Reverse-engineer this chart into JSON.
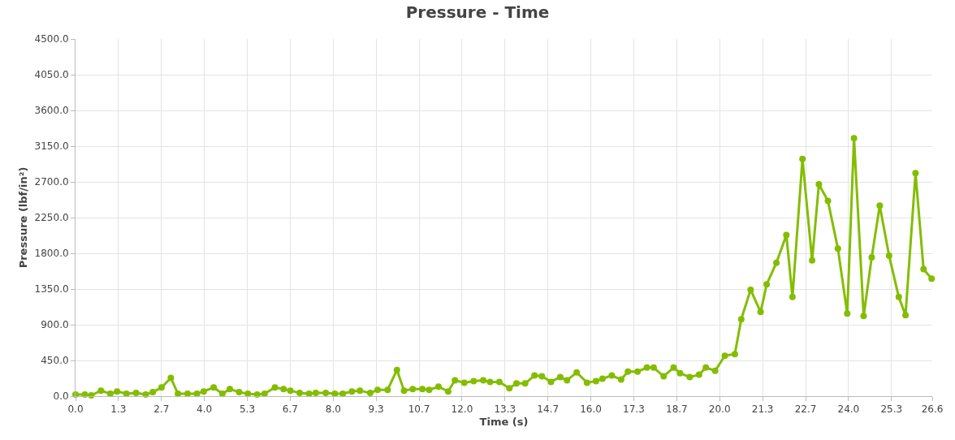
{
  "chart_data": {
    "type": "line",
    "title": "Pressure - Time",
    "xlabel": "Time (s)",
    "ylabel": "Pressure (lbf/in²)",
    "x": [
      0.0,
      0.29,
      0.49,
      0.79,
      1.08,
      1.29,
      1.58,
      1.88,
      2.18,
      2.4,
      2.67,
      2.96,
      3.18,
      3.48,
      3.77,
      3.98,
      4.29,
      4.56,
      4.79,
      5.08,
      5.35,
      5.64,
      5.87,
      6.19,
      6.46,
      6.67,
      6.96,
      7.25,
      7.46,
      7.77,
      8.05,
      8.3,
      8.58,
      8.83,
      9.15,
      9.38,
      9.69,
      9.98,
      10.2,
      10.47,
      10.77,
      10.98,
      11.27,
      11.57,
      11.78,
      12.07,
      12.36,
      12.66,
      12.87,
      13.16,
      13.47,
      13.69,
      13.96,
      14.25,
      14.48,
      14.76,
      15.05,
      15.26,
      15.56,
      15.88,
      16.16,
      16.36,
      16.65,
      16.94,
      17.15,
      17.45,
      17.74,
      17.95,
      18.26,
      18.57,
      18.77,
      19.07,
      19.36,
      19.57,
      19.86,
      20.16,
      20.47,
      20.67,
      20.96,
      21.27,
      21.46,
      21.76,
      22.07,
      22.26,
      22.57,
      22.87,
      23.08,
      23.36,
      23.67,
      23.96,
      24.17,
      24.47,
      24.72,
      24.97,
      25.26,
      25.56,
      25.77,
      26.08,
      26.33,
      26.58
    ],
    "series": [
      {
        "color": "#84bd00",
        "values": [
          20,
          20,
          10,
          70,
          30,
          60,
          30,
          40,
          20,
          50,
          110,
          230,
          30,
          30,
          30,
          60,
          110,
          30,
          90,
          50,
          30,
          20,
          30,
          110,
          90,
          70,
          40,
          30,
          40,
          40,
          30,
          30,
          60,
          70,
          40,
          80,
          80,
          330,
          70,
          90,
          90,
          80,
          120,
          60,
          200,
          170,
          190,
          200,
          180,
          180,
          100,
          160,
          160,
          260,
          250,
          180,
          240,
          200,
          300,
          170,
          190,
          220,
          260,
          210,
          310,
          310,
          360,
          360,
          250,
          360,
          290,
          240,
          270,
          360,
          320,
          510,
          530,
          970,
          1340,
          1060,
          1410,
          1680,
          2030,
          1250,
          2990,
          1710,
          2670,
          2460,
          1860,
          1040,
          3250,
          1010,
          1750,
          2400,
          1770,
          1250,
          1020,
          2810,
          1600,
          1480
        ]
      }
    ],
    "xlim": [
      0,
      26.6
    ],
    "xticks": [
      {
        "value": 0,
        "label": "0.0"
      },
      {
        "value": 1.333,
        "label": "1.3"
      },
      {
        "value": 2.667,
        "label": "2.7"
      },
      {
        "value": 4,
        "label": "4.0"
      },
      {
        "value": 5.333,
        "label": "5.3"
      },
      {
        "value": 6.667,
        "label": "6.7"
      },
      {
        "value": 8,
        "label": "8.0"
      },
      {
        "value": 9.333,
        "label": "9.3"
      },
      {
        "value": 10.667,
        "label": "10.7"
      },
      {
        "value": 12,
        "label": "12.0"
      },
      {
        "value": 13.333,
        "label": "13.3"
      },
      {
        "value": 14.667,
        "label": "14.7"
      },
      {
        "value": 16,
        "label": "16.0"
      },
      {
        "value": 17.333,
        "label": "17.3"
      },
      {
        "value": 18.667,
        "label": "18.7"
      },
      {
        "value": 20,
        "label": "20.0"
      },
      {
        "value": 21.333,
        "label": "21.3"
      },
      {
        "value": 22.667,
        "label": "22.7"
      },
      {
        "value": 24,
        "label": "24.0"
      },
      {
        "value": 25.333,
        "label": "25.3"
      },
      {
        "value": 26.6,
        "label": "26.6"
      }
    ],
    "ylim": [
      0,
      4500
    ],
    "yticks": [
      {
        "value": 0,
        "label": "0.0"
      },
      {
        "value": 450,
        "label": "450.0"
      },
      {
        "value": 900,
        "label": "900.0"
      },
      {
        "value": 1350,
        "label": "1350.0"
      },
      {
        "value": 1800,
        "label": "1800.0"
      },
      {
        "value": 2250,
        "label": "2250.0"
      },
      {
        "value": 2700,
        "label": "2700.0"
      },
      {
        "value": 3150,
        "label": "3150.0"
      },
      {
        "value": 3600,
        "label": "3600.0"
      },
      {
        "value": 4050,
        "label": "4050.0"
      },
      {
        "value": 4500,
        "label": "4500.0"
      }
    ],
    "grid": true,
    "marker": "circle",
    "line_style": "solid",
    "legend": false
  }
}
